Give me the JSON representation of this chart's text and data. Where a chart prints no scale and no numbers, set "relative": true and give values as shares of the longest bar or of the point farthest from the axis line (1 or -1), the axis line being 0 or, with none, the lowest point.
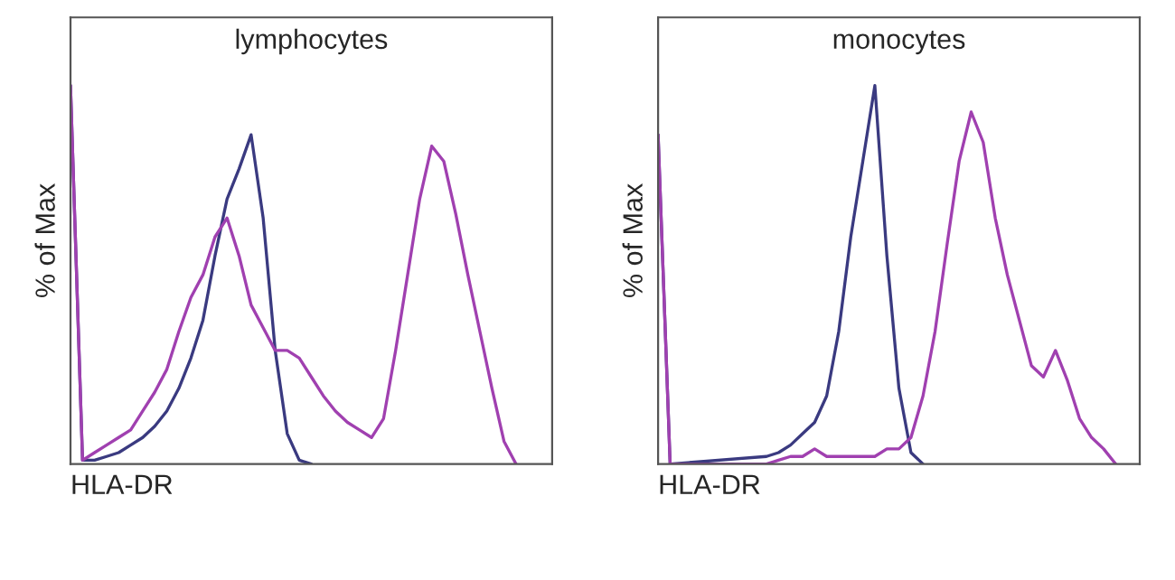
{
  "chart_data": [
    {
      "type": "line",
      "title": "lymphocytes",
      "xlabel": "HLA-DR",
      "ylabel": "% of Max",
      "relative": true,
      "tick_labels": false,
      "grid": false,
      "legend": false,
      "categories": [
        null,
        null,
        null,
        null,
        null,
        null,
        null,
        null,
        null,
        null,
        null,
        null,
        null,
        null,
        null,
        null,
        null,
        null,
        null,
        null,
        null,
        null,
        null,
        null,
        null,
        null,
        null,
        null,
        null,
        null,
        null,
        null,
        null,
        null,
        null,
        null,
        null,
        null,
        null,
        null,
        null
      ],
      "series": [
        {
          "color": "#3a3a80",
          "values": [
            1.0,
            0.01,
            0.01,
            0.02,
            0.03,
            0.05,
            0.07,
            0.1,
            0.14,
            0.2,
            0.28,
            0.38,
            0.55,
            0.7,
            0.78,
            0.87,
            0.65,
            0.3,
            0.08,
            0.01,
            0.0,
            null,
            null,
            null,
            null,
            null,
            null,
            null,
            null,
            null,
            null,
            null,
            null,
            null,
            null,
            null,
            null,
            null,
            null,
            null,
            null
          ]
        },
        {
          "color": "#a040b0",
          "values": [
            1.0,
            0.01,
            0.03,
            0.05,
            0.07,
            0.09,
            0.14,
            0.19,
            0.25,
            0.35,
            0.44,
            0.5,
            0.6,
            0.65,
            0.55,
            0.42,
            0.36,
            0.3,
            0.3,
            0.28,
            0.23,
            0.18,
            0.14,
            0.11,
            0.09,
            0.07,
            0.12,
            0.3,
            0.5,
            0.7,
            0.84,
            0.8,
            0.66,
            0.5,
            0.35,
            0.2,
            0.06,
            0.0,
            null,
            null,
            null
          ]
        }
      ]
    },
    {
      "type": "line",
      "title": "monocytes",
      "xlabel": "HLA-DR",
      "ylabel": "% of Max",
      "relative": true,
      "tick_labels": false,
      "grid": false,
      "legend": false,
      "categories": [
        null,
        null,
        null,
        null,
        null,
        null,
        null,
        null,
        null,
        null,
        null,
        null,
        null,
        null,
        null,
        null,
        null,
        null,
        null,
        null,
        null,
        null,
        null,
        null,
        null,
        null,
        null,
        null,
        null,
        null,
        null,
        null,
        null,
        null,
        null,
        null,
        null,
        null,
        null,
        null,
        null
      ],
      "series": [
        {
          "color": "#3a3a80",
          "values": [
            0.87,
            0.0,
            null,
            null,
            null,
            null,
            null,
            null,
            null,
            0.02,
            0.03,
            0.05,
            0.08,
            0.11,
            0.18,
            0.35,
            0.6,
            0.8,
            1.0,
            0.55,
            0.2,
            0.03,
            0.0,
            null,
            null,
            null,
            null,
            null,
            null,
            null,
            null,
            null,
            null,
            null,
            null,
            null,
            null,
            null,
            null,
            null,
            null
          ]
        },
        {
          "color": "#a040b0",
          "values": [
            0.87,
            0.0,
            null,
            null,
            null,
            null,
            null,
            null,
            null,
            0.0,
            0.01,
            0.02,
            0.02,
            0.04,
            0.02,
            0.02,
            0.02,
            0.02,
            0.02,
            0.04,
            0.04,
            0.07,
            0.18,
            0.35,
            0.58,
            0.8,
            0.93,
            0.85,
            0.65,
            0.5,
            0.38,
            0.26,
            0.23,
            0.3,
            0.22,
            0.12,
            0.07,
            0.04,
            0.0,
            null,
            null
          ]
        }
      ]
    }
  ]
}
